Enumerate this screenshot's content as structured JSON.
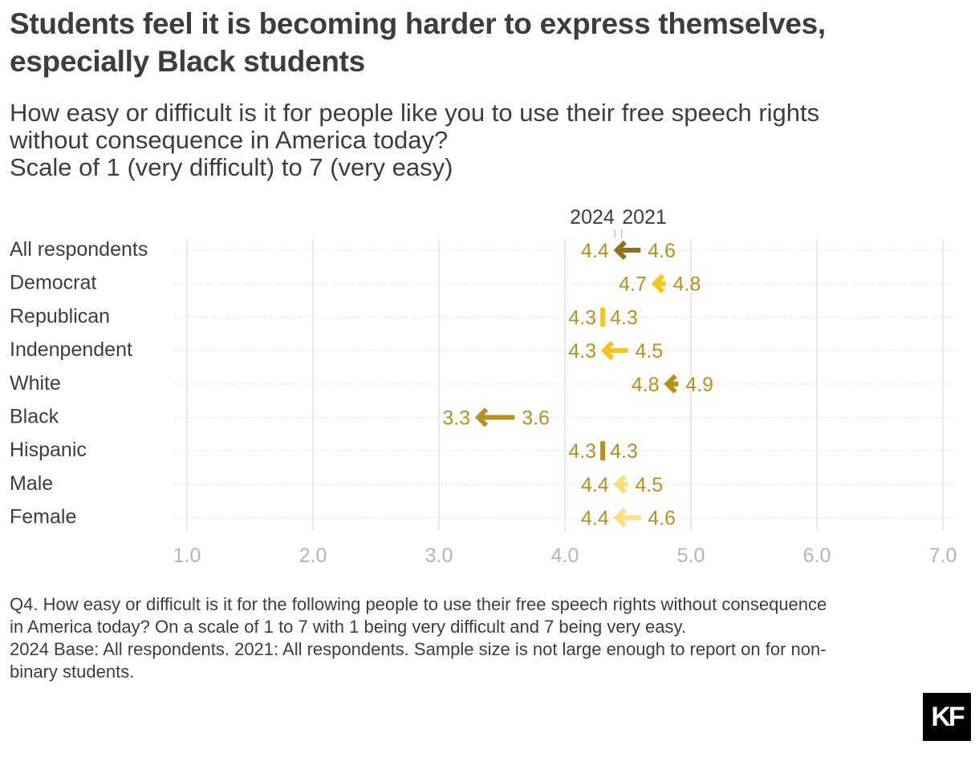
{
  "title": "Students feel it is becoming harder to express themselves, especially Black students",
  "subtitle": [
    "How easy or difficult is it for people like you to use their free speech rights",
    "without consequence in America today?",
    "Scale of 1 (very difficult) to 7 (very easy)"
  ],
  "footnote": [
    "Q4. How easy or difficult is it for the following people to use their free speech rights without consequence",
    "in America today? On a scale of 1 to 7 with 1 being very difficult and 7 being very easy.",
    "2024 Base: All respondents. 2021: All respondents. Sample size is not large enough to report on for non-",
    "binary students."
  ],
  "logo": "KF",
  "chart_data": {
    "type": "arrow",
    "categories": [
      "All respondents",
      "Democrat",
      "Republican",
      "Indenpendent",
      "White",
      "Black",
      "Hispanic",
      "Male",
      "Female"
    ],
    "series": [
      {
        "name": "2024",
        "values": [
          4.4,
          4.7,
          4.3,
          4.3,
          4.8,
          3.3,
          4.3,
          4.4,
          4.4
        ]
      },
      {
        "name": "2021",
        "values": [
          4.6,
          4.8,
          4.3,
          4.5,
          4.9,
          3.6,
          4.3,
          4.5,
          4.6
        ]
      }
    ],
    "value_labels_2024": [
      "4.4",
      "4.7",
      "4.3",
      "4.3",
      "4.8",
      "3.3",
      "4.3",
      "4.4",
      "4.4"
    ],
    "value_labels_2021": [
      "4.6",
      "4.8",
      "4.3",
      "4.5",
      "4.9",
      "3.6",
      "4.3",
      "4.5",
      "4.6"
    ],
    "colors": [
      "#8f7020",
      "#f5c51c",
      "#f5c51c",
      "#f5c51c",
      "#b8901e",
      "#b8901e",
      "#b8901e",
      "#fbdf7c",
      "#fbdf7c"
    ],
    "label_color": "#b8901e",
    "xlim": [
      1,
      7
    ],
    "ticks": [
      "1.0",
      "2.0",
      "3.0",
      "4.0",
      "5.0",
      "6.0",
      "7.0"
    ],
    "grid": true,
    "legend": "top"
  }
}
